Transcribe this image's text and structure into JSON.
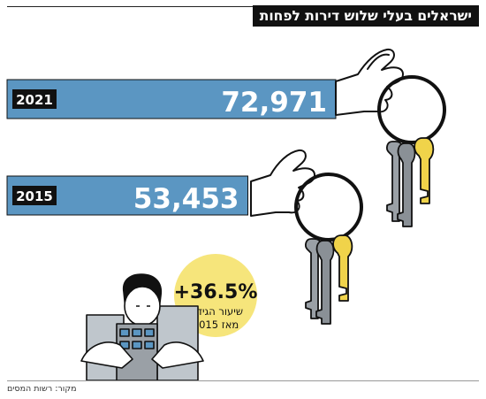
{
  "header": {
    "title": "ישראלים בעלי שלוש דירות לפחות"
  },
  "chart_data": {
    "type": "bar",
    "categories": [
      "2021",
      "2015"
    ],
    "values": [
      72971,
      53453
    ],
    "value_labels": [
      "72,971",
      "53,453"
    ],
    "title": "ישראלים בעלי שלוש דירות לפחות",
    "xlabel": "",
    "ylabel": "",
    "orientation": "horizontal",
    "grid": false,
    "bar_color": "#5b96c2",
    "annotation": {
      "value": "+36.5%",
      "line1": "שיעור הגידול",
      "line2": "מאז 2015",
      "color": "#f6e57b"
    }
  },
  "footer": {
    "source": "מקור: רשות המסים"
  }
}
